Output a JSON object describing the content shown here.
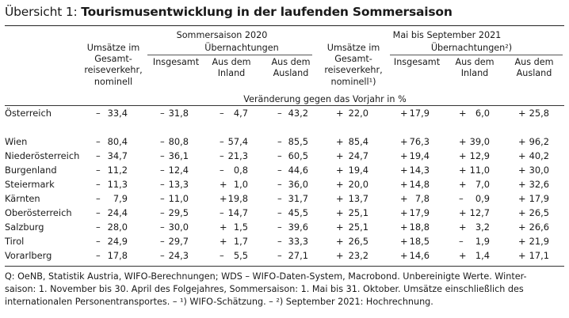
{
  "title": {
    "lead": "Übersicht 1: ",
    "main": "Tourismusentwicklung in der laufenden Sommersaison"
  },
  "header": {
    "group1": "Sommersaison 2020",
    "group2": "Mai bis September 2021",
    "uebernachtungen1": "Übernachtungen",
    "uebernachtungen2": "Übernachtungen²)",
    "umsaetze1": [
      "Umsätze im",
      "Gesamt-",
      "reiseverkehr,",
      "nominell"
    ],
    "umsaetze2": [
      "Umsätze im",
      "Gesamt-",
      "reiseverkehr,",
      "nominell¹)"
    ],
    "insgesamt": "Insgesamt",
    "inland": [
      "Aus dem",
      "Inland"
    ],
    "ausland": [
      "Aus dem",
      "Ausland"
    ],
    "unit": "Veränderung gegen das Vorjahr in %"
  },
  "rows": [
    {
      "label": "Österreich",
      "cells": [
        [
          "–",
          "33,4"
        ],
        [
          "–",
          "31,8"
        ],
        [
          "–",
          "4,7"
        ],
        [
          "–",
          "43,2"
        ],
        [
          "+",
          "22,0"
        ],
        [
          "+",
          "17,9"
        ],
        [
          "+",
          "6,0"
        ],
        [
          "+",
          "25,8"
        ]
      ]
    },
    {
      "label": "Wien",
      "cells": [
        [
          "–",
          "80,4"
        ],
        [
          "–",
          "80,8"
        ],
        [
          "–",
          "57,4"
        ],
        [
          "–",
          "85,5"
        ],
        [
          "+",
          "85,4"
        ],
        [
          "+",
          "76,3"
        ],
        [
          "+",
          "39,0"
        ],
        [
          "+",
          "96,2"
        ]
      ]
    },
    {
      "label": "Niederösterreich",
      "cells": [
        [
          "–",
          "34,7"
        ],
        [
          "–",
          "36,1"
        ],
        [
          "–",
          "21,3"
        ],
        [
          "–",
          "60,5"
        ],
        [
          "+",
          "24,7"
        ],
        [
          "+",
          "19,4"
        ],
        [
          "+",
          "12,9"
        ],
        [
          "+",
          "40,2"
        ]
      ]
    },
    {
      "label": "Burgenland",
      "cells": [
        [
          "–",
          "11,2"
        ],
        [
          "–",
          "12,4"
        ],
        [
          "–",
          "0,8"
        ],
        [
          "–",
          "44,6"
        ],
        [
          "+",
          "19,4"
        ],
        [
          "+",
          "14,3"
        ],
        [
          "+",
          "11,0"
        ],
        [
          "+",
          "30,0"
        ]
      ]
    },
    {
      "label": "Steiermark",
      "cells": [
        [
          "–",
          "11,3"
        ],
        [
          "–",
          "13,3"
        ],
        [
          "+",
          "1,0"
        ],
        [
          "–",
          "36,0"
        ],
        [
          "+",
          "20,0"
        ],
        [
          "+",
          "14,8"
        ],
        [
          "+",
          "7,0"
        ],
        [
          "+",
          "32,6"
        ]
      ]
    },
    {
      "label": "Kärnten",
      "cells": [
        [
          "–",
          "7,9"
        ],
        [
          "–",
          "11,0"
        ],
        [
          "+",
          "19,8"
        ],
        [
          "–",
          "31,7"
        ],
        [
          "+",
          "13,7"
        ],
        [
          "+",
          "7,8"
        ],
        [
          "–",
          "0,9"
        ],
        [
          "+",
          "17,9"
        ]
      ]
    },
    {
      "label": "Oberösterreich",
      "cells": [
        [
          "–",
          "24,4"
        ],
        [
          "–",
          "29,5"
        ],
        [
          "–",
          "14,7"
        ],
        [
          "–",
          "45,5"
        ],
        [
          "+",
          "25,1"
        ],
        [
          "+",
          "17,9"
        ],
        [
          "+",
          "12,7"
        ],
        [
          "+",
          "26,5"
        ]
      ]
    },
    {
      "label": "Salzburg",
      "cells": [
        [
          "–",
          "28,0"
        ],
        [
          "–",
          "30,0"
        ],
        [
          "+",
          "1,5"
        ],
        [
          "–",
          "39,6"
        ],
        [
          "+",
          "25,1"
        ],
        [
          "+",
          "18,8"
        ],
        [
          "+",
          "3,2"
        ],
        [
          "+",
          "26,6"
        ]
      ]
    },
    {
      "label": "Tirol",
      "cells": [
        [
          "–",
          "24,9"
        ],
        [
          "–",
          "29,7"
        ],
        [
          "+",
          "1,7"
        ],
        [
          "–",
          "33,3"
        ],
        [
          "+",
          "26,5"
        ],
        [
          "+",
          "18,5"
        ],
        [
          "–",
          "1,9"
        ],
        [
          "+",
          "21,9"
        ]
      ]
    },
    {
      "label": "Vorarlberg",
      "cells": [
        [
          "–",
          "17,8"
        ],
        [
          "–",
          "24,3"
        ],
        [
          "–",
          "5,5"
        ],
        [
          "–",
          "27,1"
        ],
        [
          "+",
          "23,2"
        ],
        [
          "+",
          "14,6"
        ],
        [
          "+",
          "1,4"
        ],
        [
          "+",
          "17,1"
        ]
      ]
    }
  ],
  "footnote": [
    "Q: OeNB, Statistik Austria, WIFO-Berechnungen; WDS – WIFO-Daten-System, Macrobond. Unbereinigte Werte. Winter-",
    "saison: 1. November bis 30. April des Folgejahres, Sommersaison: 1. Mai bis 31. Oktober. Umsätze einschließlich des",
    "internationalen Personentransportes. – ¹) WIFO-Schätzung. – ²) September 2021: Hochrechnung."
  ]
}
